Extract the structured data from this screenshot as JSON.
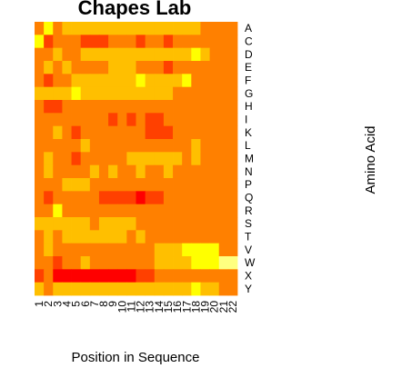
{
  "chart_data": {
    "type": "heatmap",
    "title": "Chapes Lab",
    "xlabel": "Position in Sequence",
    "ylabel": "Amino Acid",
    "x_categories": [
      "1",
      "2",
      "3",
      "4",
      "5",
      "6",
      "7",
      "8",
      "9",
      "10",
      "11",
      "12",
      "13",
      "14",
      "15",
      "16",
      "17",
      "18",
      "19",
      "20",
      "21",
      "22"
    ],
    "y_categories": [
      "A",
      "C",
      "D",
      "E",
      "F",
      "G",
      "H",
      "I",
      "K",
      "L",
      "M",
      "N",
      "P",
      "Q",
      "R",
      "S",
      "T",
      "V",
      "W",
      "X",
      "Y"
    ],
    "color_scale": [
      "#FF0000",
      "#FF4000",
      "#FF8000",
      "#FFBF00",
      "#FFFF00",
      "#FFFF80"
    ],
    "value_range": [
      0,
      5
    ],
    "values": [
      [
        2,
        4,
        2,
        3,
        3,
        3,
        3,
        3,
        3,
        3,
        3,
        3,
        3,
        3,
        3,
        3,
        3,
        3,
        2,
        2,
        2,
        2
      ],
      [
        4,
        1,
        2,
        2,
        2,
        1,
        1,
        1,
        2,
        2,
        2,
        1,
        2,
        2,
        1,
        2,
        2,
        2,
        2,
        2,
        2,
        2
      ],
      [
        2,
        2,
        3,
        2,
        2,
        3,
        3,
        3,
        3,
        3,
        3,
        3,
        3,
        3,
        3,
        3,
        3,
        4,
        3,
        2,
        2,
        2
      ],
      [
        2,
        3,
        2,
        3,
        2,
        2,
        2,
        2,
        3,
        3,
        3,
        2,
        2,
        2,
        1,
        2,
        2,
        2,
        2,
        2,
        2,
        2
      ],
      [
        2,
        1,
        2,
        2,
        3,
        3,
        3,
        3,
        3,
        3,
        3,
        4,
        3,
        3,
        3,
        3,
        4,
        2,
        2,
        2,
        2,
        2
      ],
      [
        3,
        3,
        3,
        3,
        4,
        3,
        3,
        3,
        3,
        3,
        3,
        3,
        3,
        3,
        3,
        2,
        2,
        2,
        2,
        2,
        2,
        2
      ],
      [
        2,
        1,
        1,
        2,
        2,
        2,
        2,
        2,
        2,
        2,
        2,
        2,
        2,
        2,
        2,
        2,
        2,
        2,
        2,
        2,
        2,
        2
      ],
      [
        2,
        2,
        2,
        2,
        2,
        2,
        2,
        2,
        1,
        2,
        1,
        2,
        1,
        1,
        2,
        2,
        2,
        2,
        2,
        2,
        2,
        2
      ],
      [
        2,
        2,
        3,
        2,
        1,
        2,
        2,
        2,
        2,
        2,
        2,
        2,
        1,
        1,
        1,
        2,
        2,
        2,
        2,
        2,
        2,
        2
      ],
      [
        2,
        2,
        2,
        2,
        2,
        3,
        2,
        2,
        2,
        2,
        2,
        2,
        2,
        2,
        2,
        2,
        2,
        3,
        2,
        2,
        2,
        2
      ],
      [
        2,
        3,
        2,
        2,
        1,
        2,
        2,
        2,
        2,
        2,
        3,
        3,
        3,
        3,
        3,
        3,
        2,
        3,
        2,
        2,
        2,
        2
      ],
      [
        2,
        3,
        2,
        2,
        2,
        2,
        3,
        2,
        3,
        2,
        2,
        3,
        2,
        2,
        3,
        2,
        2,
        2,
        2,
        2,
        2,
        2
      ],
      [
        2,
        2,
        2,
        3,
        3,
        3,
        2,
        2,
        2,
        2,
        2,
        2,
        2,
        2,
        2,
        2,
        2,
        2,
        2,
        2,
        2,
        2
      ],
      [
        2,
        1,
        2,
        2,
        2,
        2,
        2,
        1,
        1,
        1,
        1,
        0,
        1,
        1,
        2,
        2,
        2,
        2,
        2,
        2,
        2,
        2
      ],
      [
        2,
        2,
        4,
        2,
        2,
        2,
        2,
        2,
        2,
        2,
        2,
        2,
        2,
        2,
        2,
        2,
        2,
        2,
        2,
        2,
        2,
        2
      ],
      [
        3,
        3,
        3,
        3,
        3,
        3,
        2,
        3,
        3,
        3,
        3,
        2,
        2,
        2,
        2,
        2,
        2,
        2,
        2,
        2,
        2,
        2
      ],
      [
        2,
        3,
        2,
        3,
        3,
        3,
        3,
        3,
        3,
        3,
        2,
        3,
        2,
        2,
        2,
        2,
        2,
        2,
        2,
        2,
        2,
        2
      ],
      [
        2,
        3,
        2,
        2,
        2,
        2,
        2,
        2,
        2,
        2,
        2,
        2,
        2,
        3,
        3,
        3,
        4,
        4,
        4,
        4,
        2,
        2
      ],
      [
        2,
        2,
        1,
        2,
        2,
        3,
        2,
        2,
        2,
        2,
        2,
        2,
        2,
        3,
        3,
        3,
        3,
        4,
        4,
        4,
        5,
        5
      ],
      [
        1,
        2,
        0,
        0,
        0,
        0,
        0,
        0,
        0,
        0,
        0,
        1,
        1,
        2,
        2,
        2,
        2,
        2,
        2,
        2,
        2,
        2
      ],
      [
        3,
        2,
        3,
        3,
        3,
        3,
        3,
        3,
        3,
        3,
        3,
        3,
        3,
        3,
        3,
        3,
        3,
        4,
        3,
        3,
        2,
        2
      ]
    ]
  }
}
